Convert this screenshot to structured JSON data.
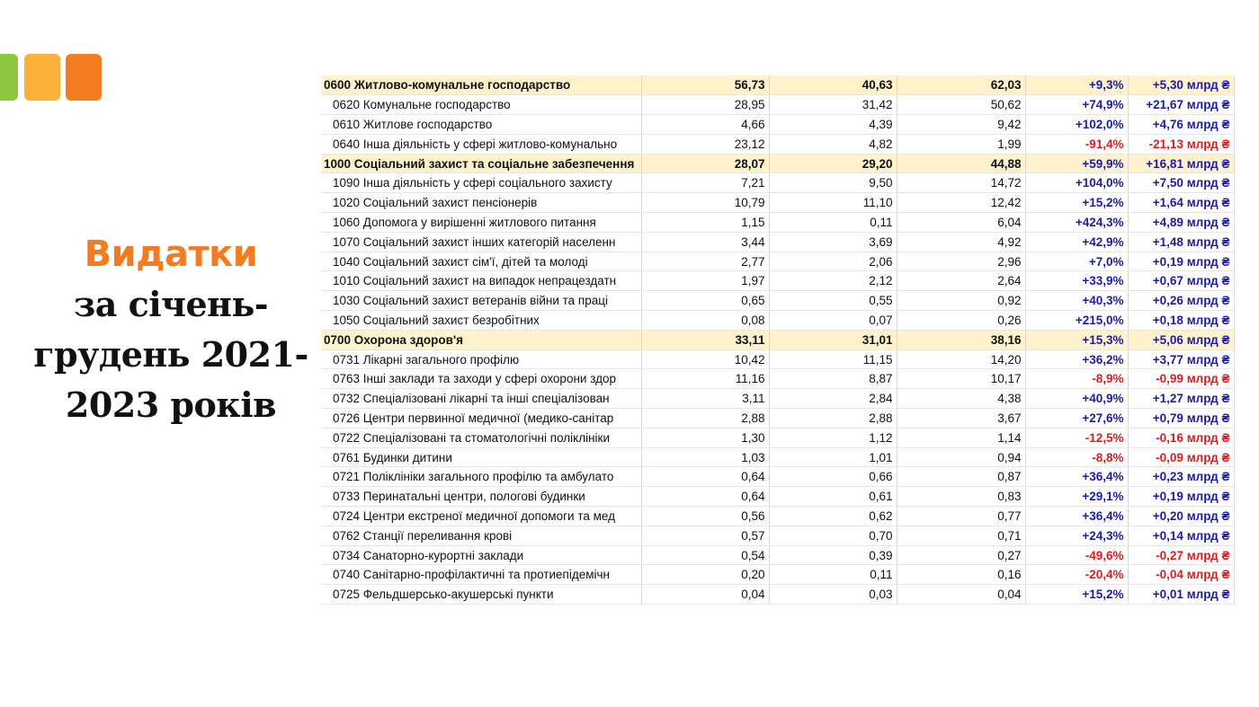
{
  "title": {
    "accent": "Видатки",
    "lines": [
      "за січень-",
      "грудень 2021-",
      "2023 років"
    ]
  },
  "table": {
    "rows": [
      {
        "group": true,
        "cells": [
          "0600 Житлово-комунальне господарство",
          "56,73",
          "40,63",
          "62,03",
          "+9,3%",
          "+5,30 млрд ₴"
        ]
      },
      {
        "cells": [
          "0620 Комунальне господарство",
          "28,95",
          "31,42",
          "50,62",
          "+74,9%",
          "+21,67 млрд ₴"
        ]
      },
      {
        "cells": [
          "0610 Житлове господарство",
          "4,66",
          "4,39",
          "9,42",
          "+102,0%",
          "+4,76 млрд ₴"
        ]
      },
      {
        "cells": [
          "0640 Інша діяльність у сфері житлово-комунально",
          "23,12",
          "4,82",
          "1,99",
          "-91,4%",
          "-21,13 млрд ₴"
        ]
      },
      {
        "group": true,
        "cells": [
          "1000 Соціальний захист та соціальне забезпечення",
          "28,07",
          "29,20",
          "44,88",
          "+59,9%",
          "+16,81 млрд ₴"
        ]
      },
      {
        "cells": [
          "1090 Інша діяльність у сфері соціального захисту",
          "7,21",
          "9,50",
          "14,72",
          "+104,0%",
          "+7,50 млрд ₴"
        ]
      },
      {
        "cells": [
          "1020 Соціальний захист пенсіонерів",
          "10,79",
          "11,10",
          "12,42",
          "+15,2%",
          "+1,64 млрд ₴"
        ]
      },
      {
        "cells": [
          "1060 Допомога у вирішенні житлового питання",
          "1,15",
          "0,11",
          "6,04",
          "+424,3%",
          "+4,89 млрд ₴"
        ]
      },
      {
        "cells": [
          "1070 Соціальний захист інших категорій населенн",
          "3,44",
          "3,69",
          "4,92",
          "+42,9%",
          "+1,48 млрд ₴"
        ]
      },
      {
        "cells": [
          "1040 Соціальний захист сім'ї, дітей та молоді",
          "2,77",
          "2,06",
          "2,96",
          "+7,0%",
          "+0,19 млрд ₴"
        ]
      },
      {
        "cells": [
          "1010 Соціальний захист на випадок непрацездатн",
          "1,97",
          "2,12",
          "2,64",
          "+33,9%",
          "+0,67 млрд ₴"
        ]
      },
      {
        "cells": [
          "1030 Соціальний захист ветеранів війни та праці",
          "0,65",
          "0,55",
          "0,92",
          "+40,3%",
          "+0,26 млрд ₴"
        ]
      },
      {
        "cells": [
          "1050 Соціальний захист безробітних",
          "0,08",
          "0,07",
          "0,26",
          "+215,0%",
          "+0,18 млрд ₴"
        ]
      },
      {
        "group": true,
        "cells": [
          "0700 Охорона здоров'я",
          "33,11",
          "31,01",
          "38,16",
          "+15,3%",
          "+5,06 млрд ₴"
        ]
      },
      {
        "cells": [
          "0731 Лікарні загального профілю",
          "10,42",
          "11,15",
          "14,20",
          "+36,2%",
          "+3,77 млрд ₴"
        ]
      },
      {
        "cells": [
          "0763 Інші заклади та заходи у сфері охорони здор",
          "11,16",
          "8,87",
          "10,17",
          "-8,9%",
          "-0,99 млрд ₴"
        ]
      },
      {
        "cells": [
          "0732 Спеціалізовані лікарні та інші спеціалізован",
          "3,11",
          "2,84",
          "4,38",
          "+40,9%",
          "+1,27 млрд ₴"
        ]
      },
      {
        "cells": [
          "0726 Центри первинної медичної (медико-санітар",
          "2,88",
          "2,88",
          "3,67",
          "+27,6%",
          "+0,79 млрд ₴"
        ]
      },
      {
        "cells": [
          "0722 Спеціалізовані та стоматологічні поліклініки",
          "1,30",
          "1,12",
          "1,14",
          "-12,5%",
          "-0,16 млрд ₴"
        ]
      },
      {
        "cells": [
          "0761 Будинки дитини",
          "1,03",
          "1,01",
          "0,94",
          "-8,8%",
          "-0,09 млрд ₴"
        ]
      },
      {
        "cells": [
          "0721 Поліклініки загального профілю та амбулато",
          "0,64",
          "0,66",
          "0,87",
          "+36,4%",
          "+0,23 млрд ₴"
        ]
      },
      {
        "cells": [
          "0733 Перинатальні центри, пологові будинки",
          "0,64",
          "0,61",
          "0,83",
          "+29,1%",
          "+0,19 млрд ₴"
        ]
      },
      {
        "cells": [
          "0724 Центри екстреної медичної допомоги та мед",
          "0,56",
          "0,62",
          "0,77",
          "+36,4%",
          "+0,20 млрд ₴"
        ]
      },
      {
        "cells": [
          "0762 Станції переливання крові",
          "0,57",
          "0,70",
          "0,71",
          "+24,3%",
          "+0,14 млрд ₴"
        ]
      },
      {
        "cells": [
          "0734 Санаторно-курортні заклади",
          "0,54",
          "0,39",
          "0,27",
          "-49,6%",
          "-0,27 млрд ₴"
        ]
      },
      {
        "cells": [
          "0740 Санітарно-профілактичні та протиепідемічн",
          "0,20",
          "0,11",
          "0,16",
          "-20,4%",
          "-0,04 млрд ₴"
        ]
      },
      {
        "cells": [
          "0725 Фельдшерсько-акушерські пункти",
          "0,04",
          "0,03",
          "0,04",
          "+15,2%",
          "+0,01 млрд ₴"
        ]
      }
    ]
  }
}
